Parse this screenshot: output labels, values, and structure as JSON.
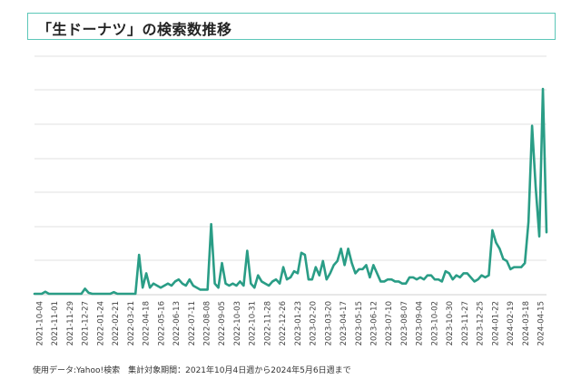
{
  "title": "「生ドーナツ」の検索数推移",
  "source_note": "使用データ:Yahoo!検索　集計対象期間：2021年10月4日週から2024年5月6日週まで",
  "colors": {
    "line": "#2a9d86",
    "grid": "#e2e2e2",
    "title_border": "#5cc7b8",
    "tick_text": "#444444"
  },
  "chart_data": {
    "type": "line",
    "title": "「生ドーナツ」の検索数推移",
    "xlabel": "",
    "ylabel": "",
    "grid": true,
    "ylim": [
      0,
      100
    ],
    "tick_labels": [
      "2021-10-04",
      "2021-11-01",
      "2021-11-29",
      "2021-12-27",
      "2022-01-24",
      "2022-02-21",
      "2022-03-21",
      "2022-04-18",
      "2022-05-16",
      "2022-06-13",
      "2022-07-11",
      "2022-08-08",
      "2022-09-05",
      "2022-10-03",
      "2022-10-31",
      "2022-11-28",
      "2022-12-26",
      "2023-01-23",
      "2023-02-20",
      "2023-03-20",
      "2023-04-17",
      "2023-05-15",
      "2023-06-12",
      "2023-07-10",
      "2023-08-07",
      "2023-09-04",
      "2023-10-02",
      "2023-10-30",
      "2023-11-27",
      "2023-12-25",
      "2024-01-22",
      "2024-02-19",
      "2024-03-18",
      "2024-04-15"
    ],
    "series": [
      {
        "values": [
          0,
          0,
          0,
          1,
          0,
          0,
          0,
          0,
          0,
          0,
          0,
          0,
          0,
          0,
          2.5,
          0.5,
          0,
          0,
          0,
          0,
          0,
          0,
          0.8,
          0,
          0,
          0,
          0,
          0,
          0,
          19,
          3,
          10,
          3,
          5,
          4,
          3,
          4,
          5,
          4,
          6,
          7,
          5,
          4,
          7,
          4,
          3,
          2,
          2,
          2,
          34,
          5,
          3,
          15,
          5,
          4,
          5,
          4,
          6,
          4,
          21,
          5,
          3,
          9,
          6,
          5,
          4,
          6,
          7,
          5,
          13,
          7,
          8,
          11,
          10,
          20,
          19,
          7,
          7,
          13,
          9,
          16,
          7,
          10,
          14,
          16,
          22,
          14,
          22,
          15,
          10,
          12,
          12,
          14,
          8,
          14,
          10,
          6,
          6,
          7,
          7,
          6,
          6,
          5,
          5,
          8,
          8,
          7,
          8,
          7,
          9,
          9,
          7,
          7,
          6,
          11,
          10,
          7,
          9,
          8,
          10,
          10,
          8,
          6,
          7,
          9,
          8,
          9,
          31,
          25,
          22,
          17,
          16,
          12,
          13,
          13,
          13,
          15,
          35,
          82,
          52,
          28,
          100,
          30
        ]
      }
    ]
  }
}
